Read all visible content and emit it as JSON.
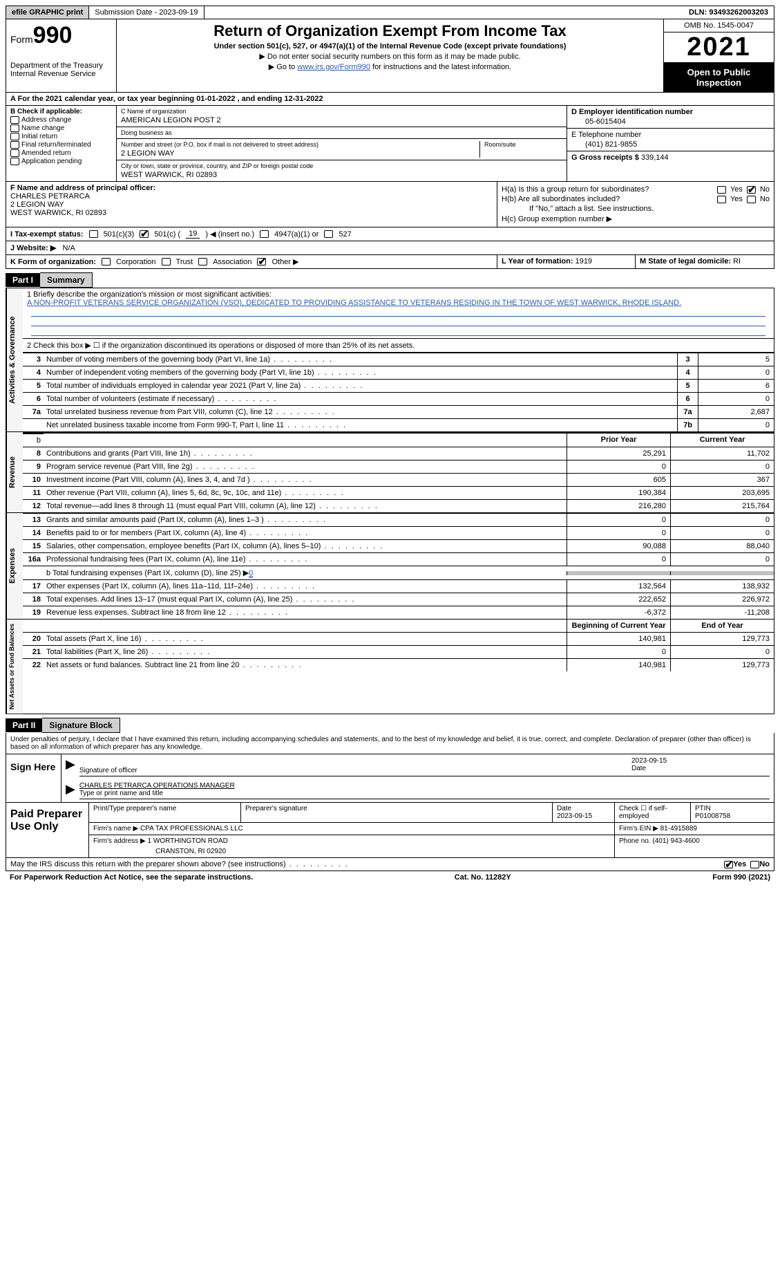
{
  "topbar": {
    "efile": "efile GRAPHIC print",
    "submission_label": "Submission Date - 2023-09-19",
    "dln": "DLN: 93493262003203"
  },
  "header": {
    "form_prefix": "Form",
    "form_number": "990",
    "dept": "Department of the Treasury",
    "irs": "Internal Revenue Service",
    "title": "Return of Organization Exempt From Income Tax",
    "subtitle": "Under section 501(c), 527, or 4947(a)(1) of the Internal Revenue Code (except private foundations)",
    "note1": "▶ Do not enter social security numbers on this form as it may be made public.",
    "note2_pre": "▶ Go to ",
    "note2_link": "www.irs.gov/Form990",
    "note2_post": " for instructions and the latest information.",
    "omb": "OMB No. 1545-0047",
    "year": "2021",
    "open": "Open to Public Inspection"
  },
  "line_a": "A  For the 2021 calendar year, or tax year beginning 01-01-2022    , and ending 12-31-2022",
  "box_b": {
    "label": "B Check if applicable:",
    "opts": [
      "Address change",
      "Name change",
      "Initial return",
      "Final return/terminated",
      "Amended return",
      "Application pending"
    ]
  },
  "box_c": {
    "name_label": "C Name of organization",
    "name": "AMERICAN LEGION POST 2",
    "dba_label": "Doing business as",
    "addr_label": "Number and street (or P.O. box if mail is not delivered to street address)",
    "room_label": "Room/suite",
    "addr": "2 LEGION WAY",
    "city_label": "City or town, state or province, country, and ZIP or foreign postal code",
    "city": "WEST WARWICK, RI  02893"
  },
  "box_d": {
    "label": "D Employer identification number",
    "val": "05-6015404"
  },
  "box_e": {
    "label": "E Telephone number",
    "val": "(401) 821-9855"
  },
  "box_g": {
    "label": "G Gross receipts $",
    "val": "339,144"
  },
  "box_f": {
    "label": "F Name and address of principal officer:",
    "name": "CHARLES PETRARCA",
    "addr1": "2 LEGION WAY",
    "addr2": "WEST WARWICK, RI  02893"
  },
  "box_h": {
    "ha": "H(a)  Is this a group return for subordinates?",
    "hb": "H(b)  Are all subordinates included?",
    "hb_note": "If \"No,\" attach a list. See instructions.",
    "hc": "H(c)  Group exemption number ▶",
    "yes": "Yes",
    "no": "No"
  },
  "row_i": {
    "label": "I    Tax-exempt status:",
    "o1": "501(c)(3)",
    "o2_pre": "501(c) (",
    "o2_num": "19",
    "o2_post": ") ◀ (insert no.)",
    "o3": "4947(a)(1) or",
    "o4": "527"
  },
  "row_j": {
    "label": "J   Website: ▶",
    "val": "N/A"
  },
  "row_k": {
    "label": "K Form of organization:",
    "opts": [
      "Corporation",
      "Trust",
      "Association",
      "Other ▶"
    ]
  },
  "row_l": {
    "label": "L Year of formation:",
    "val": "1919"
  },
  "row_m": {
    "label": "M State of legal domicile:",
    "val": "RI"
  },
  "part1": {
    "hdr": "Part I",
    "title": "Summary"
  },
  "summary": {
    "side1": "Activities & Governance",
    "l1_label": "1   Briefly describe the organization's mission or most significant activities:",
    "l1_text": "A NON-PROFIT VETERANS SERVICE ORGANIZATION (VSO), DEDICATED TO PROVIDING ASSISTANCE TO VETERANS RESIDING IN THE TOWN OF WEST WARWICK, RHODE ISLAND.",
    "l2": "2   Check this box ▶ ☐  if the organization discontinued its operations or disposed of more than 25% of its net assets.",
    "rows_ag": [
      {
        "n": "3",
        "t": "Number of voting members of the governing body (Part VI, line 1a)",
        "b": "3",
        "v": "5"
      },
      {
        "n": "4",
        "t": "Number of independent voting members of the governing body (Part VI, line 1b)",
        "b": "4",
        "v": "0"
      },
      {
        "n": "5",
        "t": "Total number of individuals employed in calendar year 2021 (Part V, line 2a)",
        "b": "5",
        "v": "6"
      },
      {
        "n": "6",
        "t": "Total number of volunteers (estimate if necessary)",
        "b": "6",
        "v": "0"
      },
      {
        "n": "7a",
        "t": "Total unrelated business revenue from Part VIII, column (C), line 12",
        "b": "7a",
        "v": "2,687"
      },
      {
        "n": "",
        "t": "Net unrelated business taxable income from Form 990-T, Part I, line 11",
        "b": "7b",
        "v": "0"
      }
    ],
    "side2": "Revenue",
    "prior_hdr": "Prior Year",
    "curr_hdr": "Current Year",
    "rows_rev": [
      {
        "n": "8",
        "t": "Contributions and grants (Part VIII, line 1h)",
        "p": "25,291",
        "c": "11,702"
      },
      {
        "n": "9",
        "t": "Program service revenue (Part VIII, line 2g)",
        "p": "0",
        "c": "0"
      },
      {
        "n": "10",
        "t": "Investment income (Part VIII, column (A), lines 3, 4, and 7d )",
        "p": "605",
        "c": "367"
      },
      {
        "n": "11",
        "t": "Other revenue (Part VIII, column (A), lines 5, 6d, 8c, 9c, 10c, and 11e)",
        "p": "190,384",
        "c": "203,695"
      },
      {
        "n": "12",
        "t": "Total revenue—add lines 8 through 11 (must equal Part VIII, column (A), line 12)",
        "p": "216,280",
        "c": "215,764"
      }
    ],
    "side3": "Expenses",
    "rows_exp": [
      {
        "n": "13",
        "t": "Grants and similar amounts paid (Part IX, column (A), lines 1–3 )",
        "p": "0",
        "c": "0"
      },
      {
        "n": "14",
        "t": "Benefits paid to or for members (Part IX, column (A), line 4)",
        "p": "0",
        "c": "0"
      },
      {
        "n": "15",
        "t": "Salaries, other compensation, employee benefits (Part IX, column (A), lines 5–10)",
        "p": "90,088",
        "c": "88,040"
      },
      {
        "n": "16a",
        "t": "Professional fundraising fees (Part IX, column (A), line 11e)",
        "p": "0",
        "c": "0"
      }
    ],
    "l16b_label": "b  Total fundraising expenses (Part IX, column (D), line 25) ▶",
    "l16b_val": "0",
    "rows_exp2": [
      {
        "n": "17",
        "t": "Other expenses (Part IX, column (A), lines 11a–11d, 11f–24e)",
        "p": "132,564",
        "c": "138,932"
      },
      {
        "n": "18",
        "t": "Total expenses. Add lines 13–17 (must equal Part IX, column (A), line 25)",
        "p": "222,652",
        "c": "226,972"
      },
      {
        "n": "19",
        "t": "Revenue less expenses. Subtract line 18 from line 12",
        "p": "-6,372",
        "c": "-11,208"
      }
    ],
    "side4": "Net Assets or Fund Balances",
    "begin_hdr": "Beginning of Current Year",
    "end_hdr": "End of Year",
    "rows_net": [
      {
        "n": "20",
        "t": "Total assets (Part X, line 16)",
        "p": "140,981",
        "c": "129,773"
      },
      {
        "n": "21",
        "t": "Total liabilities (Part X, line 26)",
        "p": "0",
        "c": "0"
      },
      {
        "n": "22",
        "t": "Net assets or fund balances. Subtract line 21 from line 20",
        "p": "140,981",
        "c": "129,773"
      }
    ]
  },
  "part2": {
    "hdr": "Part II",
    "title": "Signature Block"
  },
  "sig": {
    "penalty": "Under penalties of perjury, I declare that I have examined this return, including accompanying schedules and statements, and to the best of my knowledge and belief, it is true, correct, and complete. Declaration of preparer (other than officer) is based on all information of which preparer has any knowledge.",
    "sign_here": "Sign Here",
    "sig_label": "Signature of officer",
    "date_val": "2023-09-15",
    "date_label": "Date",
    "name_val": "CHARLES PETRARCA  OPERATIONS MANAGER",
    "name_label": "Type or print name and title"
  },
  "preparer": {
    "label": "Paid Preparer Use Only",
    "h1": "Print/Type preparer's name",
    "h2": "Preparer's signature",
    "h3_label": "Date",
    "h3": "2023-09-15",
    "h4": "Check ☐ if self-employed",
    "h5_label": "PTIN",
    "h5": "P01008758",
    "firm_label": "Firm's name    ▶",
    "firm": "CPA TAX PROFESSIONALS LLC",
    "ein_label": "Firm's EIN ▶",
    "ein": "81-4915889",
    "addr_label": "Firm's address ▶",
    "addr1": "1 WORTHINGTON ROAD",
    "addr2": "CRANSTON, RI  02920",
    "phone_label": "Phone no.",
    "phone": "(401) 943-4600"
  },
  "discuss": {
    "text": "May the IRS discuss this return with the preparer shown above? (see instructions)",
    "yes": "Yes",
    "no": "No"
  },
  "footer": {
    "left": "For Paperwork Reduction Act Notice, see the separate instructions.",
    "mid": "Cat. No. 11282Y",
    "right": "Form 990 (2021)"
  }
}
